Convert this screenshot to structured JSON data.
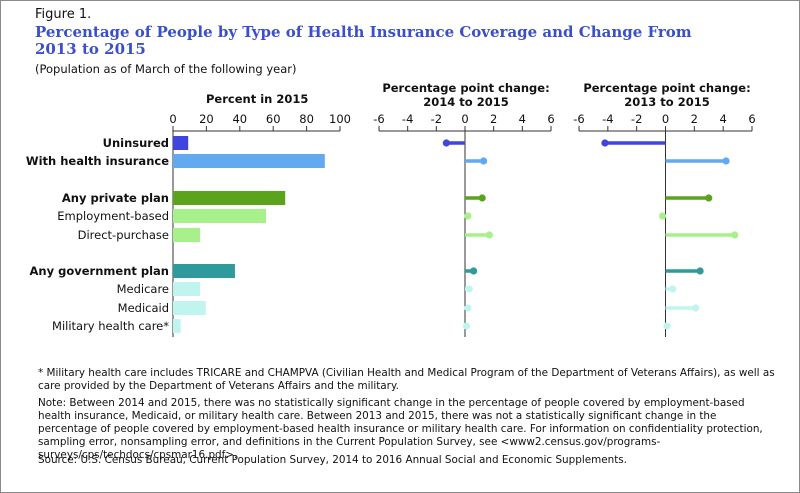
{
  "figure_label": "Figure 1.",
  "title_line1": "Percentage of People by Type of Health Insurance Coverage and Change From",
  "title_line2": "2013 to 2015",
  "subtitle": "(Population as of March of the following year)",
  "colors": {
    "uninsured": "#3f46e0",
    "insurance": "#63a9f2",
    "private": "#5aa41d",
    "private_light": "#a7f08c",
    "government": "#2f9a9b",
    "government_light": "#bff5ee"
  },
  "chart_data": [
    {
      "type": "bar",
      "panel_title": "Percent in 2015",
      "categories": [
        "Uninsured",
        "With health insurance",
        "Any private plan",
        "Employment-based",
        "Direct-purchase",
        "Any government plan",
        "Medicare",
        "Medicaid",
        "Military health care*"
      ],
      "values": [
        9.1,
        90.9,
        67.2,
        55.7,
        16.3,
        37.1,
        16.3,
        19.6,
        4.6
      ],
      "xlim": [
        0,
        100
      ],
      "ticks": [
        0,
        20,
        40,
        60,
        80,
        100
      ]
    },
    {
      "type": "lollipop",
      "panel_title_line1": "Percentage point change:",
      "panel_title_line2": "2014 to 2015",
      "categories": [
        "Uninsured",
        "With health insurance",
        "Any private plan",
        "Employment-based",
        "Direct-purchase",
        "Any government plan",
        "Medicare",
        "Medicaid",
        "Military health care*"
      ],
      "values": [
        -1.3,
        1.3,
        1.2,
        0.2,
        1.7,
        0.6,
        0.3,
        0.2,
        0.1
      ],
      "xlim": [
        -6,
        6
      ],
      "ticks": [
        -6,
        -4,
        -2,
        0,
        2,
        4,
        6
      ]
    },
    {
      "type": "lollipop",
      "panel_title_line1": "Percentage point change:",
      "panel_title_line2": "2013 to 2015",
      "categories": [
        "Uninsured",
        "With health insurance",
        "Any private plan",
        "Employment-based",
        "Direct-purchase",
        "Any government plan",
        "Medicare",
        "Medicaid",
        "Military health care*"
      ],
      "values": [
        -4.2,
        4.2,
        3.0,
        -0.2,
        4.8,
        2.4,
        0.5,
        2.1,
        0.1
      ],
      "xlim": [
        -6,
        6
      ],
      "ticks": [
        -6,
        -4,
        -2,
        0,
        2,
        4,
        6
      ]
    }
  ],
  "row_bold": [
    true,
    true,
    true,
    false,
    false,
    true,
    false,
    false,
    false
  ],
  "footnote": "* Military health care includes TRICARE and CHAMPVA (Civilian Health and Medical Program of the Department of Veterans Affairs), as well as care provided by the Department of Veterans Affairs and the military.",
  "note": "Note: Between 2014 and 2015, there was no statistically significant change in the percentage of people covered by employment-based health insurance, Medicaid, or military health care. Between 2013 and 2015, there was not a statistically significant change in the percentage of people covered by employment-based health insurance or military health care. For information on confidentiality protection, sampling error, nonsampling error, and definitions in the Current Population Survey, see <www2.census.gov/programs-surveys/cps/techdocs/cpsmar16.pdf>.",
  "source": "Source: U.S. Census Bureau, Current Population Survey, 2014 to 2016 Annual Social and Economic Supplements."
}
